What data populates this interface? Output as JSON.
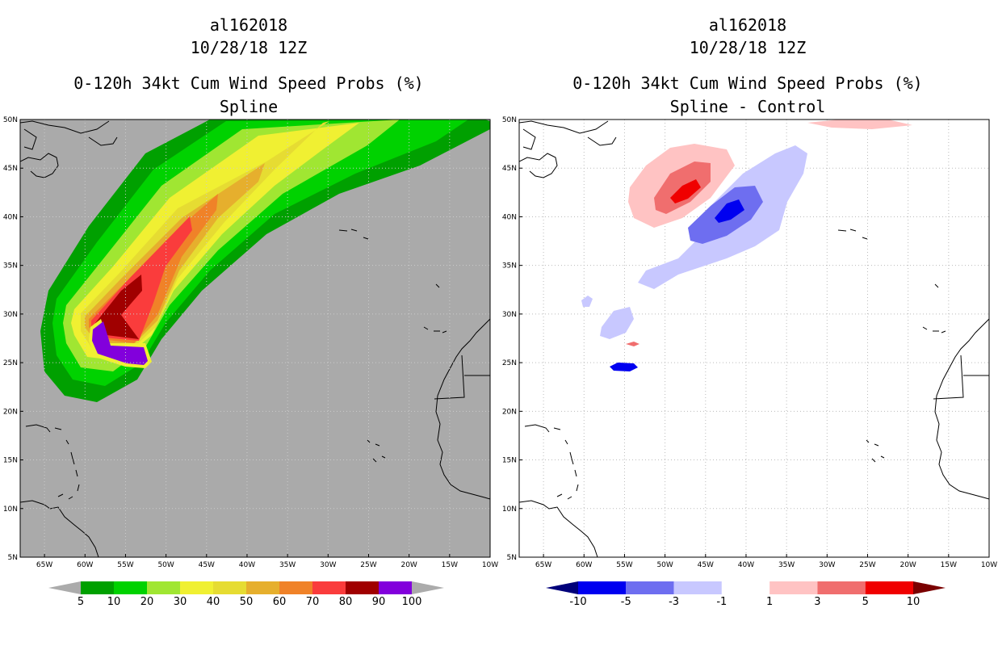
{
  "chart_data": [
    {
      "type": "heatmap",
      "id": "left",
      "title_lines": [
        "al162018",
        "10/28/18 12Z",
        "0-120h 34kt Cum Wind Speed Probs (%)",
        "Spline"
      ],
      "lon_range": [
        -68,
        -10
      ],
      "lat_range": [
        5,
        50
      ],
      "x_ticks": [
        "65W",
        "60W",
        "55W",
        "50W",
        "45W",
        "40W",
        "35W",
        "30W",
        "25W",
        "20W",
        "15W",
        "10W"
      ],
      "y_ticks": [
        "5N",
        "10N",
        "15N",
        "20N",
        "25N",
        "30N",
        "35N",
        "40N",
        "45N",
        "50N"
      ],
      "background_color": "#aaaaaa",
      "colorbar": {
        "labels": [
          "5",
          "10",
          "20",
          "30",
          "40",
          "50",
          "60",
          "70",
          "80",
          "90",
          "100"
        ],
        "colors": [
          "#ababab",
          "#00a000",
          "#00d200",
          "#a0e632",
          "#f0f032",
          "#e6dc32",
          "#e6af2d",
          "#f08228",
          "#fa3c3c",
          "#a00000",
          "#8200dc",
          "#ababab"
        ]
      },
      "probability_contours": [
        {
          "level": 5,
          "color": "#00a000"
        },
        {
          "level": 10,
          "color": "#00d200"
        },
        {
          "level": 20,
          "color": "#a0e632"
        },
        {
          "level": 30,
          "color": "#f0f032"
        },
        {
          "level": 40,
          "color": "#e6dc32"
        },
        {
          "level": 50,
          "color": "#e6af2d"
        },
        {
          "level": 60,
          "color": "#f08228"
        },
        {
          "level": 70,
          "color": "#fa3c3c"
        },
        {
          "level": 80,
          "color": "#a00000"
        },
        {
          "level": 90,
          "color": "#8200dc"
        }
      ]
    },
    {
      "type": "heatmap",
      "id": "right",
      "title_lines": [
        "al162018",
        "10/28/18 12Z",
        "0-120h 34kt Cum Wind Speed Probs (%)",
        "Spline - Control"
      ],
      "lon_range": [
        -68,
        -10
      ],
      "lat_range": [
        5,
        50
      ],
      "x_ticks": [
        "65W",
        "60W",
        "55W",
        "50W",
        "45W",
        "40W",
        "35W",
        "30W",
        "25W",
        "20W",
        "15W",
        "10W"
      ],
      "y_ticks": [
        "5N",
        "10N",
        "15N",
        "20N",
        "25N",
        "30N",
        "35N",
        "40N",
        "45N",
        "50N"
      ],
      "background_color": "#ffffff",
      "colorbar": {
        "labels": [
          "-10",
          "-5",
          "-3",
          "-1",
          "1",
          "3",
          "5",
          "10"
        ],
        "colors": [
          "#00007a",
          "#0000f0",
          "#6e6ef0",
          "#c8c8ff",
          "#ffffff",
          "#ffc3c3",
          "#f06e6e",
          "#f00000",
          "#7a0000"
        ]
      },
      "difference_regions": [
        {
          "name": "neg-light-main",
          "level": "-3 to -1",
          "color": "#c8c8ff"
        },
        {
          "name": "neg-medium-main",
          "level": "-5 to -3",
          "color": "#6e6ef0"
        },
        {
          "name": "neg-strong-main",
          "level": "-10 to -5",
          "color": "#0000f0"
        },
        {
          "name": "pos-light-main",
          "level": "1 to 3",
          "color": "#ffc3c3"
        },
        {
          "name": "pos-medium-main",
          "level": "3 to 5",
          "color": "#f06e6e"
        },
        {
          "name": "pos-strong-main",
          "level": "5 to 10",
          "color": "#f00000"
        }
      ]
    }
  ]
}
